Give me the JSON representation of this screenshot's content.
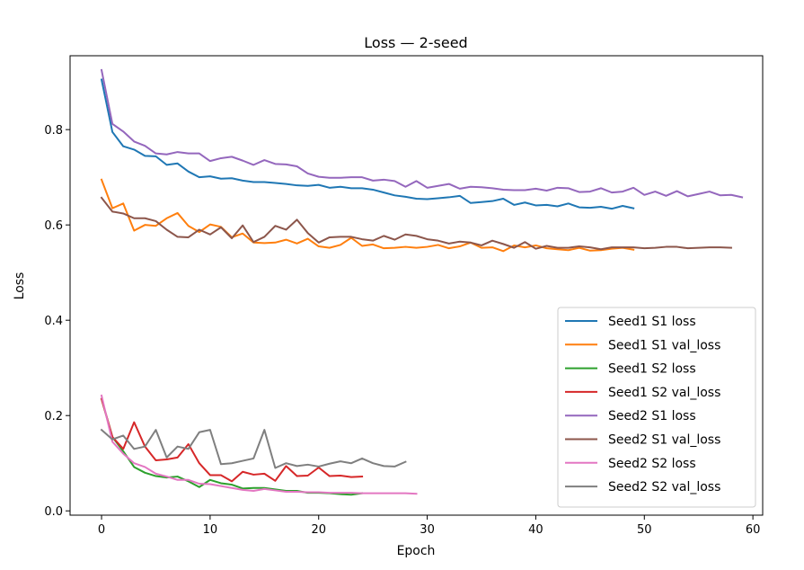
{
  "chart_data": {
    "type": "line",
    "title": "Loss — 2-seed",
    "xlabel": "Epoch",
    "ylabel": "Loss",
    "xlim": [
      -2.9,
      60.9
    ],
    "ylim": [
      -0.009,
      0.955
    ],
    "xticks": [
      0,
      10,
      20,
      30,
      40,
      50,
      60
    ],
    "yticks": [
      0.0,
      0.2,
      0.4,
      0.6,
      0.8
    ],
    "ytick_labels": [
      "0.0",
      "0.2",
      "0.4",
      "0.6",
      "0.8"
    ],
    "grid": false,
    "legend_position": "lower-right",
    "series": [
      {
        "name": "Seed1 S1 loss",
        "color": "#1f77b4",
        "values": [
          0.905,
          0.795,
          0.765,
          0.758,
          0.745,
          0.744,
          0.726,
          0.729,
          0.712,
          0.7,
          0.702,
          0.697,
          0.698,
          0.693,
          0.69,
          0.69,
          0.688,
          0.686,
          0.683,
          0.682,
          0.684,
          0.678,
          0.68,
          0.677,
          0.677,
          0.674,
          0.668,
          0.662,
          0.659,
          0.655,
          0.654,
          0.656,
          0.658,
          0.661,
          0.646,
          0.648,
          0.65,
          0.655,
          0.642,
          0.647,
          0.641,
          0.642,
          0.639,
          0.645,
          0.637,
          0.636,
          0.638,
          0.634,
          0.64,
          0.635
        ]
      },
      {
        "name": "Seed1 S1 val_loss",
        "color": "#ff7f0e",
        "values": [
          0.695,
          0.635,
          0.645,
          0.588,
          0.6,
          0.598,
          0.614,
          0.625,
          0.598,
          0.585,
          0.601,
          0.596,
          0.574,
          0.582,
          0.563,
          0.562,
          0.563,
          0.569,
          0.561,
          0.571,
          0.555,
          0.552,
          0.558,
          0.573,
          0.556,
          0.559,
          0.551,
          0.552,
          0.554,
          0.552,
          0.554,
          0.558,
          0.551,
          0.555,
          0.563,
          0.552,
          0.553,
          0.545,
          0.557,
          0.553,
          0.557,
          0.551,
          0.549,
          0.547,
          0.552,
          0.546,
          0.547,
          0.55,
          0.552,
          0.548
        ]
      },
      {
        "name": "Seed1 S2 loss",
        "color": "#2ca02c",
        "values": [
          0.235,
          0.155,
          0.125,
          0.092,
          0.08,
          0.073,
          0.07,
          0.072,
          0.062,
          0.05,
          0.065,
          0.058,
          0.055,
          0.047,
          0.048,
          0.048,
          0.045,
          0.042,
          0.042,
          0.038,
          0.038,
          0.037,
          0.035,
          0.034,
          0.037
        ]
      },
      {
        "name": "Seed1 S2 val_loss",
        "color": "#d62728",
        "values": [
          0.235,
          0.155,
          0.13,
          0.186,
          0.135,
          0.106,
          0.108,
          0.112,
          0.14,
          0.1,
          0.075,
          0.075,
          0.062,
          0.082,
          0.076,
          0.078,
          0.063,
          0.094,
          0.073,
          0.074,
          0.091,
          0.073,
          0.074,
          0.071,
          0.072
        ]
      },
      {
        "name": "Seed2 S1 loss",
        "color": "#9467bd",
        "values": [
          0.925,
          0.812,
          0.796,
          0.775,
          0.766,
          0.75,
          0.748,
          0.753,
          0.75,
          0.75,
          0.734,
          0.74,
          0.743,
          0.735,
          0.726,
          0.736,
          0.728,
          0.727,
          0.723,
          0.708,
          0.701,
          0.699,
          0.699,
          0.7,
          0.7,
          0.693,
          0.695,
          0.692,
          0.68,
          0.692,
          0.678,
          0.682,
          0.686,
          0.676,
          0.68,
          0.679,
          0.677,
          0.674,
          0.673,
          0.673,
          0.676,
          0.672,
          0.678,
          0.677,
          0.669,
          0.67,
          0.677,
          0.668,
          0.67,
          0.678,
          0.663,
          0.67,
          0.661,
          0.671,
          0.66,
          0.665,
          0.67,
          0.662,
          0.663,
          0.658
        ]
      },
      {
        "name": "Seed2 S1 val_loss",
        "color": "#8c564b",
        "values": [
          0.657,
          0.628,
          0.624,
          0.614,
          0.614,
          0.608,
          0.59,
          0.575,
          0.574,
          0.59,
          0.58,
          0.595,
          0.572,
          0.599,
          0.564,
          0.575,
          0.598,
          0.59,
          0.611,
          0.583,
          0.563,
          0.574,
          0.575,
          0.575,
          0.57,
          0.567,
          0.577,
          0.569,
          0.58,
          0.577,
          0.57,
          0.567,
          0.561,
          0.565,
          0.563,
          0.557,
          0.567,
          0.56,
          0.552,
          0.564,
          0.55,
          0.556,
          0.552,
          0.552,
          0.555,
          0.553,
          0.549,
          0.553,
          0.553,
          0.553,
          0.551,
          0.552,
          0.554,
          0.554,
          0.551,
          0.552,
          0.553,
          0.553,
          0.552
        ]
      },
      {
        "name": "Seed2 S2 loss",
        "color": "#e377c2",
        "values": [
          0.242,
          0.145,
          0.12,
          0.1,
          0.092,
          0.078,
          0.072,
          0.065,
          0.065,
          0.057,
          0.056,
          0.052,
          0.048,
          0.044,
          0.042,
          0.046,
          0.043,
          0.04,
          0.04,
          0.039,
          0.039,
          0.038,
          0.038,
          0.038,
          0.037,
          0.037,
          0.037,
          0.037,
          0.037,
          0.036
        ]
      },
      {
        "name": "Seed2 S2 val_loss",
        "color": "#7f7f7f",
        "values": [
          0.17,
          0.15,
          0.158,
          0.13,
          0.135,
          0.17,
          0.112,
          0.135,
          0.13,
          0.165,
          0.17,
          0.098,
          0.1,
          0.105,
          0.11,
          0.17,
          0.09,
          0.1,
          0.094,
          0.097,
          0.093,
          0.099,
          0.104,
          0.1,
          0.11,
          0.1,
          0.094,
          0.093,
          0.103
        ]
      }
    ]
  }
}
